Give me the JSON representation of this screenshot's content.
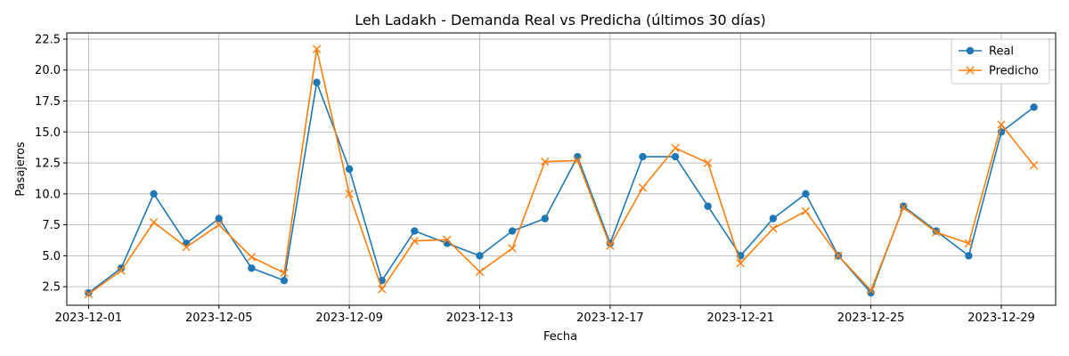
{
  "chart_data": {
    "type": "line",
    "title": "Leh Ladakh - Demanda Real vs Predicha (últimos 30 días)",
    "xlabel": "Fecha",
    "ylabel": "Pasajeros",
    "x": [
      "2023-12-01",
      "2023-12-02",
      "2023-12-03",
      "2023-12-04",
      "2023-12-05",
      "2023-12-06",
      "2023-12-07",
      "2023-12-08",
      "2023-12-09",
      "2023-12-10",
      "2023-12-11",
      "2023-12-12",
      "2023-12-13",
      "2023-12-14",
      "2023-12-15",
      "2023-12-16",
      "2023-12-17",
      "2023-12-18",
      "2023-12-19",
      "2023-12-20",
      "2023-12-21",
      "2023-12-22",
      "2023-12-23",
      "2023-12-24",
      "2023-12-25",
      "2023-12-26",
      "2023-12-27",
      "2023-12-28",
      "2023-12-29",
      "2023-12-30"
    ],
    "x_ticks": [
      "2023-12-01",
      "2023-12-05",
      "2023-12-09",
      "2023-12-13",
      "2023-12-17",
      "2023-12-21",
      "2023-12-25",
      "2023-12-29"
    ],
    "y_ticks": [
      "2.5",
      "5.0",
      "7.5",
      "10.0",
      "12.5",
      "15.0",
      "17.5",
      "20.0",
      "22.5"
    ],
    "ylim": [
      1.0,
      23.0
    ],
    "xlim": [
      "2023-11-30T08:00",
      "2023-12-30T16:00"
    ],
    "grid": true,
    "legend_position": "top-right",
    "series": [
      {
        "name": "Real",
        "color": "#1f77b4",
        "marker": "circle",
        "values": [
          2,
          4,
          10,
          6,
          8,
          4,
          3,
          19,
          12,
          3,
          7,
          6,
          5,
          7,
          8,
          13,
          6,
          13,
          13,
          9,
          5,
          8,
          10,
          5,
          2,
          9,
          7,
          5,
          15,
          17
        ]
      },
      {
        "name": "Predicho",
        "color": "#ff7f0e",
        "marker": "x",
        "values": [
          1.9,
          3.8,
          7.7,
          5.7,
          7.5,
          4.9,
          3.6,
          21.7,
          10.0,
          2.3,
          6.2,
          6.3,
          3.7,
          5.6,
          12.6,
          12.7,
          5.8,
          10.5,
          13.7,
          12.5,
          4.4,
          7.2,
          8.6,
          5.0,
          2.2,
          8.9,
          6.9,
          6.0,
          15.6,
          12.3
        ]
      }
    ]
  }
}
